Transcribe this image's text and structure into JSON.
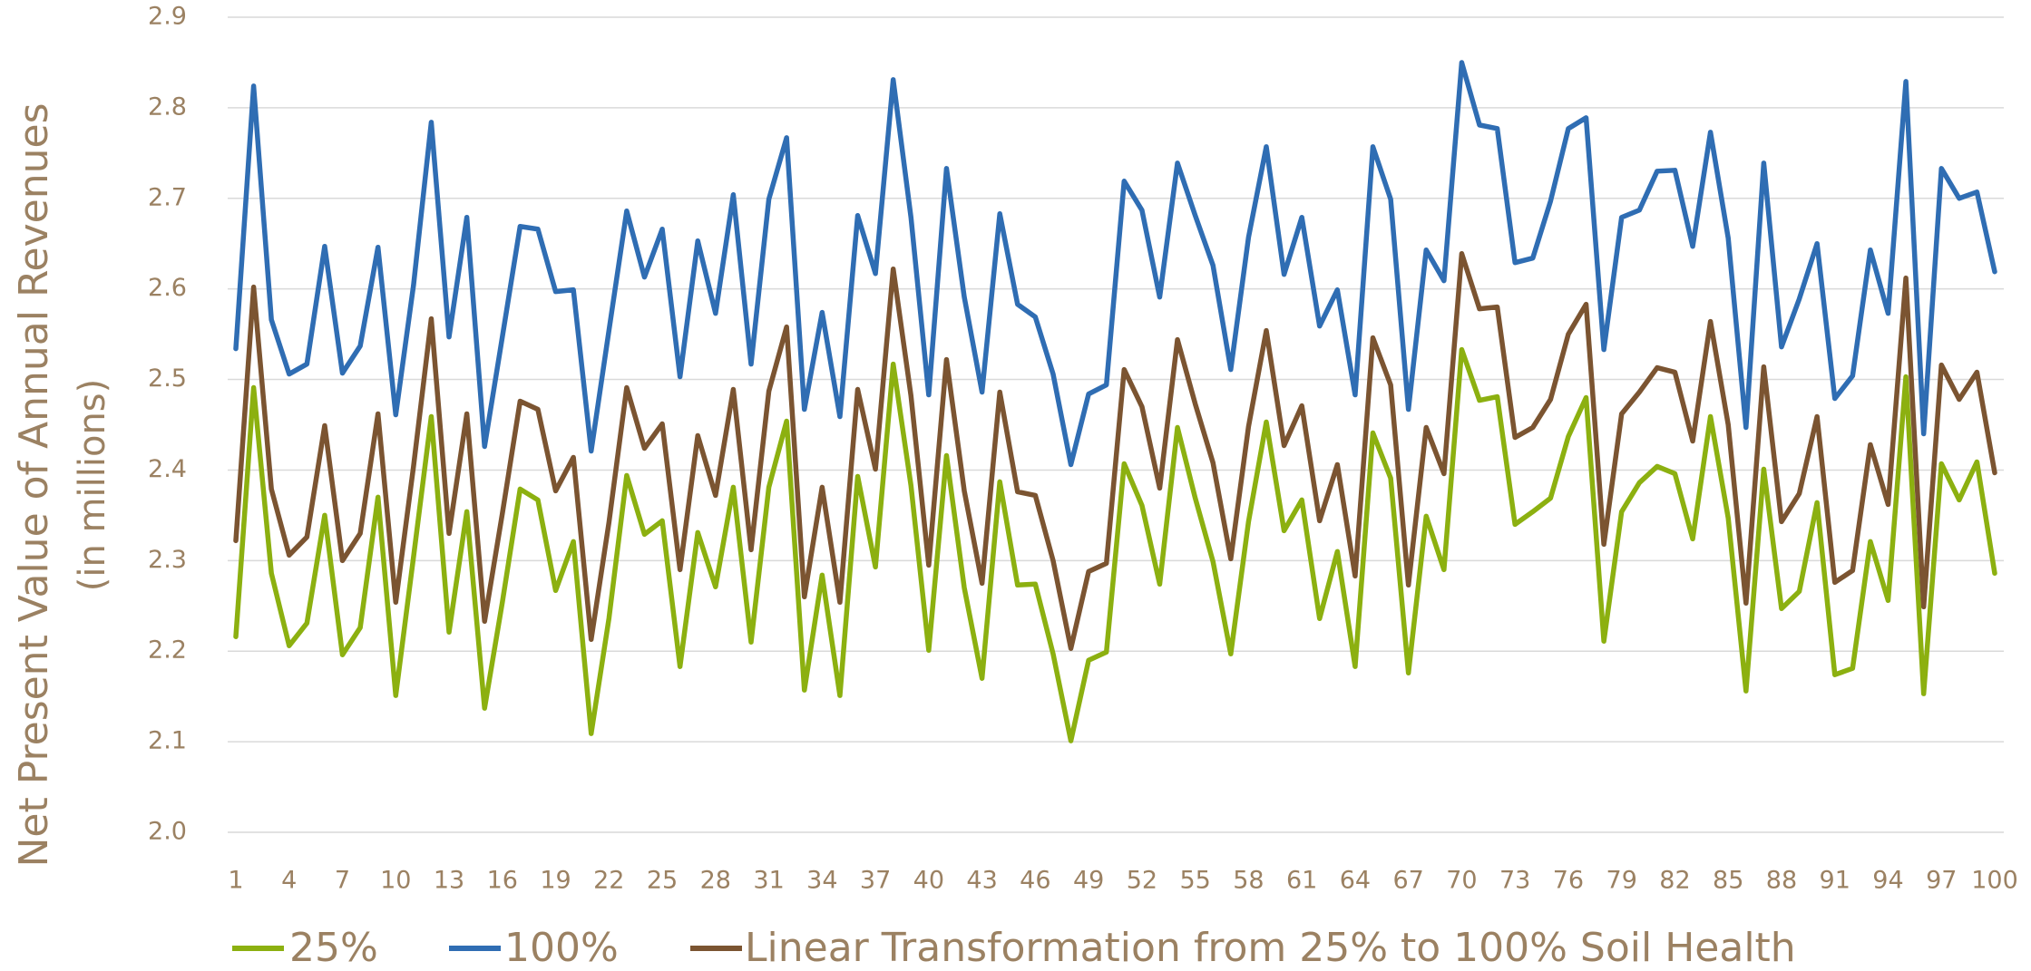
{
  "chart_data": {
    "type": "line",
    "y_label": [
      "Net Present Value of Annual Revenues",
      "(in millions)"
    ],
    "categories": [
      1,
      null,
      null,
      4,
      null,
      null,
      7,
      null,
      null,
      10,
      null,
      null,
      13,
      null,
      null,
      16,
      null,
      null,
      19,
      null,
      null,
      22,
      null,
      null,
      25,
      null,
      null,
      28,
      null,
      null,
      31,
      null,
      null,
      34,
      null,
      null,
      37,
      null,
      null,
      40,
      null,
      null,
      43,
      null,
      null,
      46,
      null,
      null,
      49,
      null,
      null,
      52,
      null,
      null,
      55,
      null,
      null,
      58,
      null,
      null,
      61,
      null,
      null,
      64,
      null,
      null,
      67,
      null,
      null,
      70,
      null,
      null,
      73,
      null,
      null,
      76,
      null,
      null,
      79,
      null,
      null,
      82,
      null,
      null,
      85,
      null,
      null,
      88,
      null,
      null,
      91,
      null,
      null,
      94,
      null,
      null,
      97,
      null,
      null,
      100
    ],
    "ylim": [
      2.0,
      2.9
    ],
    "yticks": [
      {
        "value": 2.0,
        "label": "2.0"
      },
      2.1,
      2.2,
      2.3,
      2.4,
      2.5,
      2.6,
      2.7,
      2.8,
      2.9
    ],
    "grid": true,
    "legend": "bottom",
    "series": [
      {
        "name": "25%",
        "color": "#8cb010",
        "values": [
          2.216,
          2.491,
          2.286,
          2.206,
          2.231,
          2.35,
          2.196,
          2.226,
          2.37,
          2.151,
          2.304,
          2.459,
          2.221,
          2.354,
          2.137,
          2.254,
          2.379,
          2.367,
          2.267,
          2.321,
          2.109,
          2.236,
          2.394,
          2.329,
          2.344,
          2.183,
          2.331,
          2.271,
          2.381,
          2.21,
          2.381,
          2.454,
          2.157,
          2.284,
          2.151,
          2.393,
          2.293,
          2.517,
          2.383,
          2.201,
          2.416,
          2.27,
          2.17,
          2.387,
          2.273,
          2.274,
          2.197,
          2.101,
          2.19,
          2.199,
          2.407,
          2.361,
          2.274,
          2.447,
          2.369,
          2.299,
          2.197,
          2.343,
          2.453,
          2.333,
          2.367,
          2.236,
          2.31,
          2.183,
          2.441,
          2.391,
          2.176,
          2.349,
          2.29,
          2.533,
          2.477,
          2.481,
          2.34,
          2.354,
          2.369,
          2.437,
          2.48,
          2.211,
          2.354,
          2.386,
          2.404,
          2.396,
          2.324,
          2.459,
          2.347,
          2.156,
          2.401,
          2.247,
          2.266,
          2.364,
          2.174,
          2.181,
          2.321,
          2.256,
          2.503,
          2.153,
          2.407,
          2.367,
          2.409,
          2.286
        ]
      },
      {
        "name": "100%",
        "color": "#2f6db3",
        "values": [
          2.534,
          2.824,
          2.566,
          2.506,
          2.517,
          2.647,
          2.507,
          2.537,
          2.646,
          2.461,
          2.604,
          2.784,
          2.547,
          2.679,
          2.426,
          2.547,
          2.669,
          2.666,
          2.597,
          2.599,
          2.421,
          2.554,
          2.686,
          2.613,
          2.666,
          2.503,
          2.653,
          2.573,
          2.704,
          2.517,
          2.699,
          2.767,
          2.467,
          2.574,
          2.459,
          2.681,
          2.617,
          2.831,
          2.679,
          2.483,
          2.733,
          2.591,
          2.486,
          2.683,
          2.583,
          2.569,
          2.506,
          2.406,
          2.484,
          2.494,
          2.719,
          2.687,
          2.591,
          2.739,
          2.681,
          2.626,
          2.511,
          2.657,
          2.757,
          2.616,
          2.679,
          2.559,
          2.599,
          2.483,
          2.757,
          2.699,
          2.467,
          2.643,
          2.609,
          2.85,
          2.781,
          2.777,
          2.629,
          2.634,
          2.697,
          2.777,
          2.789,
          2.533,
          2.679,
          2.687,
          2.73,
          2.731,
          2.647,
          2.773,
          2.656,
          2.447,
          2.739,
          2.536,
          2.589,
          2.65,
          2.479,
          2.504,
          2.643,
          2.573,
          2.829,
          2.44,
          2.733,
          2.7,
          2.707,
          2.619
        ]
      },
      {
        "name": "Linear Transformation from 25% to 100% Soil Health",
        "color": "#7b5431",
        "values": [
          2.322,
          2.602,
          2.379,
          2.306,
          2.326,
          2.449,
          2.3,
          2.33,
          2.462,
          2.254,
          2.404,
          2.567,
          2.33,
          2.462,
          2.233,
          2.352,
          2.476,
          2.467,
          2.377,
          2.414,
          2.213,
          2.342,
          2.491,
          2.424,
          2.451,
          2.29,
          2.438,
          2.372,
          2.489,
          2.312,
          2.487,
          2.558,
          2.26,
          2.381,
          2.254,
          2.489,
          2.401,
          2.622,
          2.482,
          2.295,
          2.522,
          2.377,
          2.275,
          2.486,
          2.376,
          2.372,
          2.3,
          2.203,
          2.288,
          2.297,
          2.511,
          2.47,
          2.38,
          2.544,
          2.473,
          2.408,
          2.302,
          2.448,
          2.554,
          2.427,
          2.471,
          2.344,
          2.406,
          2.283,
          2.546,
          2.494,
          2.273,
          2.447,
          2.396,
          2.639,
          2.578,
          2.58,
          2.436,
          2.447,
          2.478,
          2.55,
          2.583,
          2.318,
          2.462,
          2.486,
          2.513,
          2.508,
          2.432,
          2.564,
          2.45,
          2.253,
          2.514,
          2.343,
          2.374,
          2.459,
          2.276,
          2.289,
          2.428,
          2.362,
          2.612,
          2.249,
          2.516,
          2.478,
          2.508,
          2.397
        ]
      }
    ]
  }
}
